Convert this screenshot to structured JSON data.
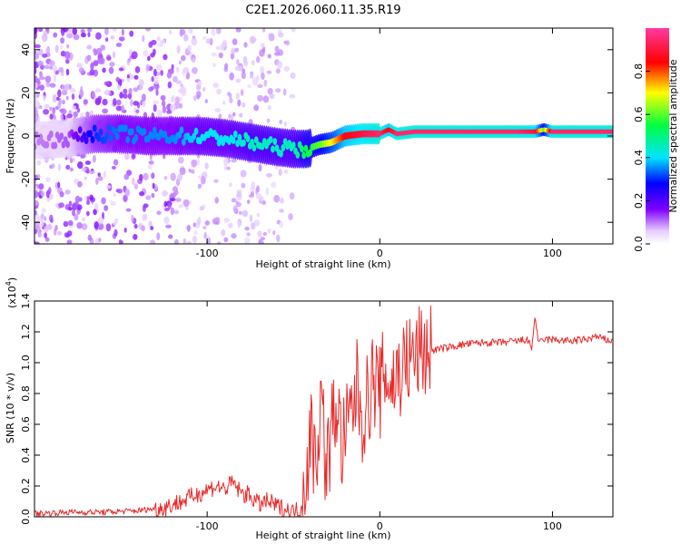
{
  "figure": {
    "title": "C2E1.2026.060.11.35.R19"
  },
  "colors": {
    "snr_line": "#e82a2a",
    "background": "#ffffff"
  },
  "chart_data": [
    {
      "type": "heatmap",
      "title": "C2E1.2026.060.11.35.R19",
      "xlabel": "Height of straight line (km)",
      "ylabel": "Frequency (Hz)",
      "xlim": [
        -200,
        135
      ],
      "ylim": [
        -50,
        50
      ],
      "x_ticks": [
        -100,
        0,
        100
      ],
      "x_tick_labels": [
        "-100",
        "0",
        "100"
      ],
      "y_ticks": [
        40,
        20,
        0,
        -20,
        -40
      ],
      "y_tick_labels": [
        "40",
        "20",
        "0",
        "-20",
        "-40"
      ],
      "colorbar": {
        "label": "Normalized spectral amplitude",
        "range": [
          0,
          1
        ],
        "ticks": [
          0.0,
          0.2,
          0.4,
          0.6,
          0.8
        ],
        "tick_labels": [
          "0.0",
          "0.2",
          "0.4",
          "0.6",
          "0.8"
        ]
      },
      "ridge": {
        "x": [
          -195,
          -180,
          -165,
          -150,
          -135,
          -120,
          -105,
          -90,
          -75,
          -60,
          -50,
          -42,
          -35,
          -28,
          -20,
          -10,
          0,
          5,
          10,
          20,
          40,
          60,
          80,
          90,
          95,
          100,
          120,
          135
        ],
        "frequency": [
          -2,
          -1,
          1,
          1,
          0,
          0,
          0,
          -1,
          -3,
          -5,
          -6,
          -6,
          -4,
          -3,
          0,
          1,
          1,
          3,
          1,
          2,
          2,
          2,
          2,
          2,
          3,
          2,
          2,
          2
        ],
        "amplitude": [
          0.1,
          0.12,
          0.3,
          0.35,
          0.35,
          0.35,
          0.4,
          0.4,
          0.45,
          0.45,
          0.45,
          0.55,
          0.6,
          0.7,
          0.85,
          0.9,
          0.95,
          0.85,
          0.95,
          0.95,
          0.95,
          0.95,
          0.95,
          0.9,
          0.6,
          0.95,
          0.95,
          0.95
        ]
      }
    },
    {
      "type": "line",
      "xlabel": "Height of straight line (km)",
      "ylabel": "SNR (10 * v/v)",
      "y_scale_label": "(x10",
      "y_scale_exponent": "4",
      "xlim": [
        -200,
        135
      ],
      "ylim": [
        0,
        1.4
      ],
      "x_ticks": [
        -100,
        0,
        100
      ],
      "x_tick_labels": [
        "-100",
        "0",
        "100"
      ],
      "y_ticks": [
        0.0,
        0.2,
        0.4,
        0.6,
        0.8,
        1.0,
        1.2,
        1.4
      ],
      "y_tick_labels": [
        "0.0",
        "0.2",
        "0.4",
        "0.6",
        "0.8",
        "1.0",
        "1.2",
        "1.4"
      ],
      "series": [
        {
          "name": "SNR",
          "x": [
            -200,
            -180,
            -160,
            -140,
            -125,
            -115,
            -105,
            -95,
            -90,
            -85,
            -80,
            -75,
            -70,
            -65,
            -60,
            -55,
            -50,
            -46,
            -43,
            -40,
            -37,
            -34,
            -31,
            -28,
            -25,
            -22,
            -19,
            -16,
            -13,
            -10,
            -7,
            -4,
            0,
            3,
            6,
            9,
            12,
            15,
            18,
            21,
            24,
            30,
            40,
            50,
            60,
            70,
            80,
            85,
            88,
            90,
            92,
            95,
            100,
            110,
            120,
            125,
            130,
            135
          ],
          "y": [
            0.02,
            0.03,
            0.03,
            0.04,
            0.06,
            0.1,
            0.15,
            0.2,
            0.18,
            0.22,
            0.15,
            0.14,
            0.08,
            0.1,
            0.07,
            0.05,
            0.03,
            0.05,
            0.25,
            0.55,
            0.35,
            0.8,
            0.3,
            0.55,
            0.75,
            0.45,
            0.55,
            0.7,
            0.85,
            0.65,
            0.75,
            0.9,
            0.8,
            0.95,
            0.85,
            0.9,
            0.95,
            1.0,
            1.02,
            1.05,
            1.07,
            1.08,
            1.1,
            1.12,
            1.13,
            1.13,
            1.14,
            1.15,
            1.1,
            1.3,
            1.12,
            1.15,
            1.15,
            1.14,
            1.15,
            1.17,
            1.15,
            1.14
          ]
        }
      ]
    }
  ]
}
